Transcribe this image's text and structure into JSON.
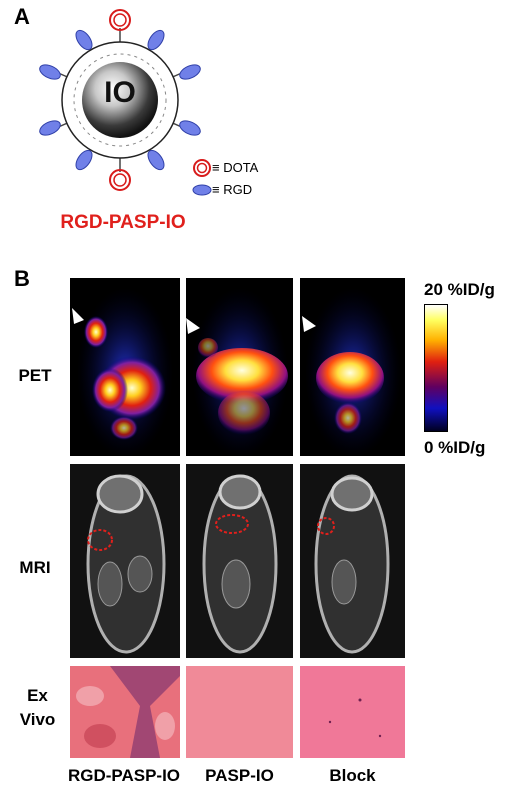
{
  "panel_a": {
    "label": "A",
    "core_label": "IO",
    "legend": [
      {
        "icon": "dota-icon",
        "text": "≡ DOTA"
      },
      {
        "icon": "rgd-icon",
        "text": "≡ RGD"
      }
    ],
    "construct_name": "RGD-PASP-IO"
  },
  "panel_b": {
    "label": "B",
    "rows": [
      {
        "key": "pet",
        "label": "PET"
      },
      {
        "key": "mri",
        "label": "MRI"
      },
      {
        "key": "exvivo",
        "label": "Ex Vivo"
      }
    ],
    "columns": [
      "RGD-PASP-IO",
      "PASP-IO",
      "Block"
    ],
    "scale": {
      "max": "20 %ID/g",
      "min": "0 %ID/g"
    }
  },
  "colors": {
    "construct_red": "#e0201c",
    "dota_red": "#d81c1c",
    "rgd_blue": "#7080e8",
    "exvivo_pink": "#f08a98"
  }
}
